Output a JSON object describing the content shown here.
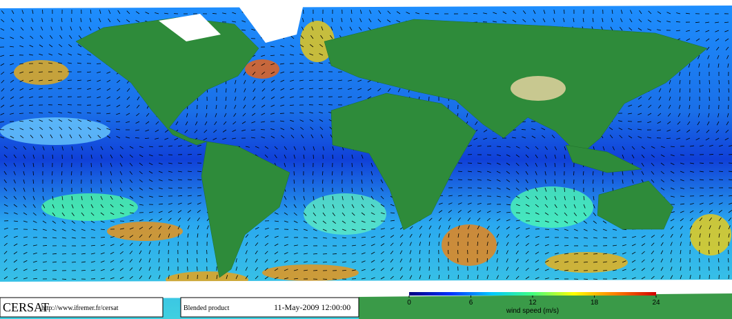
{
  "footer": {
    "logo": "CERSAT",
    "url": "http://www.ifremer.fr/cersat",
    "product": "Blended product",
    "date": "11-May-2009 12:00:00"
  },
  "colorbar": {
    "label": "wind speed (m/s)",
    "lim": [
      0,
      24
    ],
    "ticks": [
      0,
      6,
      12,
      18,
      24
    ],
    "colors": [
      "#000080",
      "#0030ff",
      "#00c8ff",
      "#40ff80",
      "#ffff00",
      "#ff8000",
      "#d00000"
    ]
  }
}
